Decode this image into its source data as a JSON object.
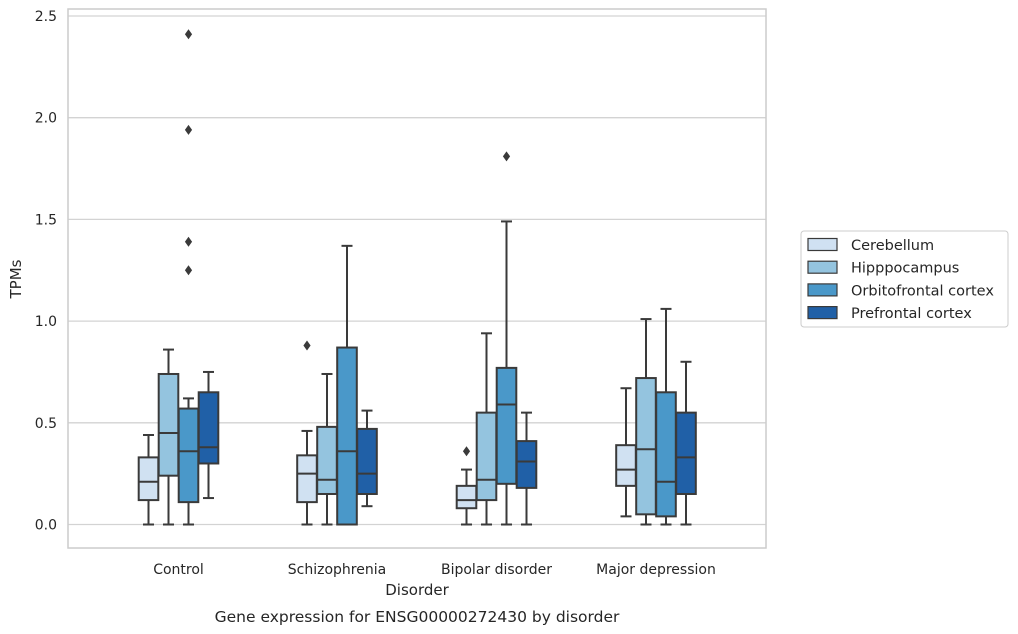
{
  "chart_data": {
    "type": "box",
    "title": "",
    "caption": "Gene expression for ENSG00000272430 by disorder",
    "xlabel": "Disorder",
    "ylabel": "TPMs",
    "ylim": [
      -0.12,
      2.55
    ],
    "yticks": [
      0.0,
      0.5,
      1.0,
      1.5,
      2.0,
      2.5
    ],
    "ytick_labels": [
      "0.0",
      "0.5",
      "1.0",
      "1.5",
      "2.0",
      "2.5"
    ],
    "grid": "horizontal",
    "legend_position": "right",
    "categories": [
      "Control",
      "Schizophrenia",
      "Bipolar disorder",
      "Major depression"
    ],
    "series": [
      {
        "name": "Cerebellum",
        "color": "#d0e1f2",
        "boxes": [
          {
            "whisker_low": 0.0,
            "q1": 0.12,
            "median": 0.21,
            "q3": 0.33,
            "whisker_high": 0.44,
            "outliers": []
          },
          {
            "whisker_low": 0.0,
            "q1": 0.11,
            "median": 0.25,
            "q3": 0.34,
            "whisker_high": 0.46,
            "outliers": [
              0.88
            ]
          },
          {
            "whisker_low": 0.0,
            "q1": 0.08,
            "median": 0.12,
            "q3": 0.19,
            "whisker_high": 0.27,
            "outliers": [
              0.36
            ]
          },
          {
            "whisker_low": 0.04,
            "q1": 0.19,
            "median": 0.27,
            "q3": 0.39,
            "whisker_high": 0.67,
            "outliers": []
          }
        ]
      },
      {
        "name": "Hipppocampus",
        "color": "#94c4df",
        "boxes": [
          {
            "whisker_low": 0.0,
            "q1": 0.24,
            "median": 0.45,
            "q3": 0.74,
            "whisker_high": 0.86,
            "outliers": []
          },
          {
            "whisker_low": 0.0,
            "q1": 0.15,
            "median": 0.22,
            "q3": 0.48,
            "whisker_high": 0.74,
            "outliers": []
          },
          {
            "whisker_low": 0.0,
            "q1": 0.12,
            "median": 0.22,
            "q3": 0.55,
            "whisker_high": 0.94,
            "outliers": []
          },
          {
            "whisker_low": 0.0,
            "q1": 0.05,
            "median": 0.37,
            "q3": 0.72,
            "whisker_high": 1.01,
            "outliers": []
          }
        ]
      },
      {
        "name": "Orbitofrontal cortex",
        "color": "#4a98c9",
        "boxes": [
          {
            "whisker_low": 0.0,
            "q1": 0.11,
            "median": 0.36,
            "q3": 0.57,
            "whisker_high": 0.62,
            "outliers": [
              1.25,
              1.39,
              1.94,
              2.41
            ]
          },
          {
            "whisker_low": 0.0,
            "q1": 0.0,
            "median": 0.36,
            "q3": 0.87,
            "whisker_high": 1.37,
            "outliers": []
          },
          {
            "whisker_low": 0.0,
            "q1": 0.2,
            "median": 0.59,
            "q3": 0.77,
            "whisker_high": 1.49,
            "outliers": [
              1.81
            ]
          },
          {
            "whisker_low": 0.0,
            "q1": 0.04,
            "median": 0.21,
            "q3": 0.65,
            "whisker_high": 1.06,
            "outliers": []
          }
        ]
      },
      {
        "name": "Prefrontal cortex",
        "color": "#2060a7",
        "boxes": [
          {
            "whisker_low": 0.13,
            "q1": 0.3,
            "median": 0.38,
            "q3": 0.65,
            "whisker_high": 0.75,
            "outliers": []
          },
          {
            "whisker_low": 0.09,
            "q1": 0.15,
            "median": 0.25,
            "q3": 0.47,
            "whisker_high": 0.56,
            "outliers": []
          },
          {
            "whisker_low": 0.0,
            "q1": 0.18,
            "median": 0.31,
            "q3": 0.41,
            "whisker_high": 0.55,
            "outliers": []
          },
          {
            "whisker_low": 0.0,
            "q1": 0.15,
            "median": 0.33,
            "q3": 0.55,
            "whisker_high": 0.8,
            "outliers": []
          }
        ]
      }
    ]
  },
  "colors": {
    "grid": "#d3d3d3",
    "frame": "#cccccc",
    "stroke": "#3a3a3a",
    "text": "#262626"
  }
}
